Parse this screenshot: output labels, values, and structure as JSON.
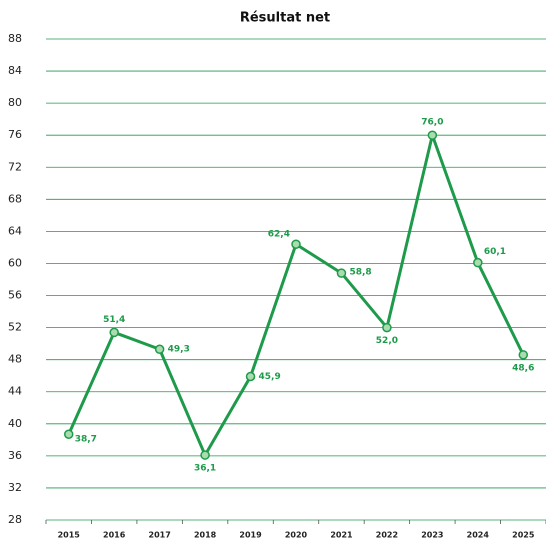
{
  "chart_data": {
    "type": "line",
    "title": "Résultat net",
    "categories": [
      "2015",
      "2016",
      "2017",
      "2018",
      "2019",
      "2020",
      "2021",
      "2022",
      "2023",
      "2024",
      "2025"
    ],
    "values": [
      38.7,
      51.4,
      49.3,
      36.1,
      45.9,
      62.4,
      58.8,
      52.0,
      76.0,
      60.1,
      48.6
    ],
    "value_labels": [
      "38,7",
      "51,4",
      "49,3",
      "36,1",
      "45,9",
      "62,4",
      "58,8",
      "52,0",
      "76,0",
      "60,1",
      "48,6"
    ],
    "color": "#1e9a4b",
    "marker_color": "#a9dcae",
    "ylim": [
      28,
      88
    ],
    "yticks": [
      28,
      32,
      36,
      40,
      44,
      48,
      52,
      56,
      60,
      64,
      68,
      72,
      76,
      80,
      84,
      88
    ],
    "grid": true
  }
}
